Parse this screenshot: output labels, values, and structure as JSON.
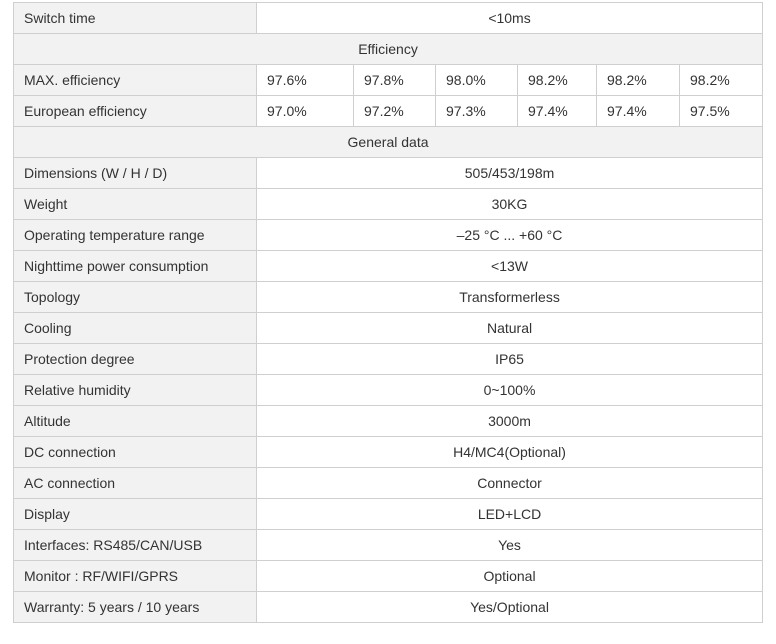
{
  "table": {
    "switch_time": {
      "label": "Switch time",
      "value": "<10ms"
    },
    "efficiency": {
      "header": "Efficiency",
      "max": {
        "label": "MAX. efficiency",
        "values": [
          "97.6%",
          "97.8%",
          "98.0%",
          "98.2%",
          "98.2%",
          "98.2%"
        ]
      },
      "european": {
        "label": "European efficiency",
        "values": [
          "97.0%",
          "97.2%",
          "97.3%",
          "97.4%",
          "97.4%",
          "97.5%"
        ]
      }
    },
    "general": {
      "header": "General data",
      "rows": [
        {
          "label": "Dimensions (W / H / D)",
          "value": "505/453/198m"
        },
        {
          "label": "Weight",
          "value": "30KG"
        },
        {
          "label": "Operating temperature range",
          "value": "–25 °C ... +60 °C"
        },
        {
          "label": "Nighttime power consumption",
          "value": "<13W"
        },
        {
          "label": "Topology",
          "value": "Transformerless"
        },
        {
          "label": "Cooling",
          "value": "Natural"
        },
        {
          "label": "Protection degree",
          "value": "IP65"
        },
        {
          "label": "Relative humidity",
          "value": "0~100%"
        },
        {
          "label": "Altitude",
          "value": "3000m"
        },
        {
          "label": "DC connection",
          "value": "H4/MC4(Optional)"
        },
        {
          "label": "AC connection",
          "value": "Connector"
        },
        {
          "label": "Display",
          "value": "LED+LCD"
        },
        {
          "label": "Interfaces: RS485/CAN/USB",
          "value": "Yes"
        },
        {
          "label": "Monitor : RF/WIFI/GPRS",
          "value": "Optional"
        },
        {
          "label": "Warranty: 5 years / 10 years",
          "value": "Yes/Optional"
        }
      ]
    }
  }
}
